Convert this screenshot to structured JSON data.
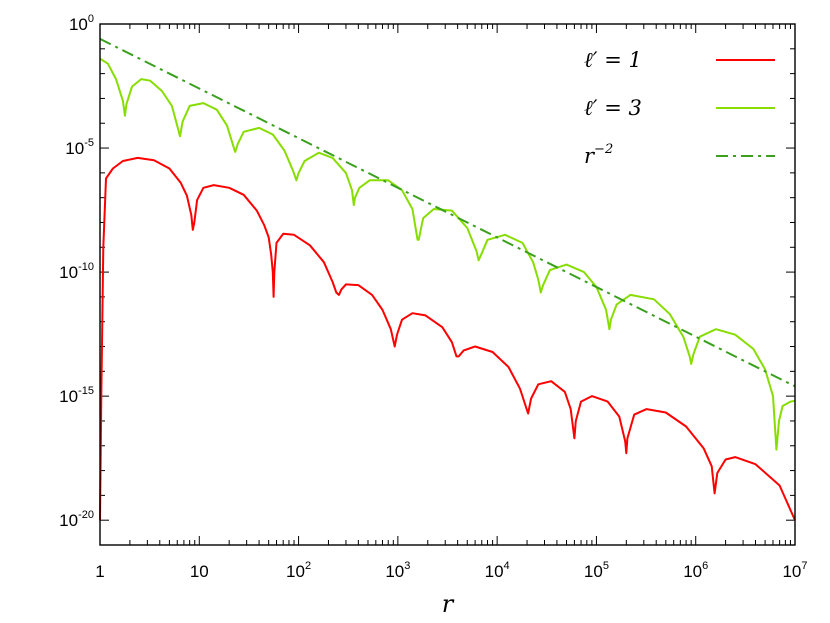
{
  "chart_data": {
    "type": "line",
    "title": "",
    "xlabel": "r",
    "ylabel": "",
    "x_scale": "log",
    "y_scale": "log",
    "xlim": [
      1,
      10000000
    ],
    "ylim": [
      1e-21,
      1
    ],
    "grid": false,
    "legend_position": "top-right",
    "x_ticks": [
      {
        "value": 1,
        "base": "1",
        "exp": ""
      },
      {
        "value": 10,
        "base": "10",
        "exp": ""
      },
      {
        "value": 100,
        "base": "10",
        "exp": "2"
      },
      {
        "value": 1000,
        "base": "10",
        "exp": "3"
      },
      {
        "value": 10000,
        "base": "10",
        "exp": "4"
      },
      {
        "value": 100000,
        "base": "10",
        "exp": "5"
      },
      {
        "value": 1000000,
        "base": "10",
        "exp": "6"
      },
      {
        "value": 10000000,
        "base": "10",
        "exp": "7"
      }
    ],
    "y_ticks": [
      {
        "value": 1,
        "base": "10",
        "exp": "0"
      },
      {
        "value": 1e-05,
        "base": "10",
        "exp": "-5"
      },
      {
        "value": 1e-10,
        "base": "10",
        "exp": "-10"
      },
      {
        "value": 1e-15,
        "base": "10",
        "exp": "-15"
      },
      {
        "value": 1e-20,
        "base": "10",
        "exp": "-20"
      }
    ],
    "series": [
      {
        "name": "ℓ′ = 1",
        "legend_base": "ℓ′ = 1",
        "legend_sup": "",
        "color": "#ff0000",
        "style": "solid",
        "points": [
          [
            1.0,
            1e-20
          ],
          [
            1.03,
            1e-15
          ],
          [
            1.08,
            1e-09
          ],
          [
            1.15,
            6e-07
          ],
          [
            1.35,
            1.5e-06
          ],
          [
            1.7,
            3e-06
          ],
          [
            2.4,
            4e-06
          ],
          [
            3.5,
            3.2e-06
          ],
          [
            5,
            1.5e-06
          ],
          [
            6.5,
            4e-07
          ],
          [
            7.5,
            1.2e-07
          ],
          [
            8.3,
            2e-08
          ],
          [
            8.6,
            5e-09
          ],
          [
            8.9,
            1e-08
          ],
          [
            9.5,
            8e-08
          ],
          [
            11,
            2.5e-07
          ],
          [
            14,
            3.2e-07
          ],
          [
            20,
            2.5e-07
          ],
          [
            28,
            1.3e-07
          ],
          [
            38,
            3e-08
          ],
          [
            45,
            8e-09
          ],
          [
            50,
            2.5e-09
          ],
          [
            53,
            5e-10
          ],
          [
            55,
            1e-10
          ],
          [
            56,
            1e-11
          ],
          [
            57,
            1e-10
          ],
          [
            60,
            1.5e-09
          ],
          [
            70,
            3.5e-09
          ],
          [
            90,
            3.2e-09
          ],
          [
            130,
            1.2e-09
          ],
          [
            180,
            2.5e-10
          ],
          [
            220,
            4e-11
          ],
          [
            240,
            1.5e-11
          ],
          [
            255,
            1.2e-11
          ],
          [
            270,
            2e-11
          ],
          [
            300,
            3.2e-11
          ],
          [
            400,
            3e-11
          ],
          [
            550,
            1.2e-11
          ],
          [
            700,
            3e-12
          ],
          [
            850,
            5e-13
          ],
          [
            930,
            1e-13
          ],
          [
            980,
            3e-13
          ],
          [
            1100,
            1.2e-12
          ],
          [
            1400,
            2.2e-12
          ],
          [
            1900,
            1.8e-12
          ],
          [
            2800,
            6e-13
          ],
          [
            3500,
            1.5e-13
          ],
          [
            3900,
            4e-14
          ],
          [
            4100,
            4e-14
          ],
          [
            4600,
            7e-14
          ],
          [
            6000,
            1e-13
          ],
          [
            9000,
            6e-14
          ],
          [
            13000,
            1.5e-14
          ],
          [
            17000,
            2e-15
          ],
          [
            20500,
            2e-16
          ],
          [
            22000,
            8e-16
          ],
          [
            26000,
            3e-15
          ],
          [
            35000,
            4e-15
          ],
          [
            48000,
            1.5e-15
          ],
          [
            55000,
            3e-16
          ],
          [
            58000,
            6e-17
          ],
          [
            60000,
            2e-17
          ],
          [
            62000,
            1e-16
          ],
          [
            70000,
            6e-16
          ],
          [
            90000,
            1e-15
          ],
          [
            130000,
            6e-16
          ],
          [
            170000,
            1.5e-16
          ],
          [
            195000,
            1.5e-17
          ],
          [
            200000,
            5e-18
          ],
          [
            205000,
            2e-17
          ],
          [
            240000,
            1.8e-16
          ],
          [
            320000,
            3e-16
          ],
          [
            500000,
            2.2e-16
          ],
          [
            800000,
            6e-17
          ],
          [
            1200000,
            8e-18
          ],
          [
            1450000,
            1.5e-18
          ],
          [
            1550000,
            1.2e-19
          ],
          [
            1650000,
            8e-19
          ],
          [
            2000000,
            2.8e-18
          ],
          [
            2500000,
            3.5e-18
          ],
          [
            4000000,
            1.8e-18
          ],
          [
            7000000,
            2.5e-19
          ],
          [
            10000000,
            1e-20
          ]
        ]
      },
      {
        "name": "ℓ′ = 3",
        "legend_base": "ℓ′ = 3",
        "legend_sup": "",
        "color": "#88dd00",
        "style": "solid",
        "points": [
          [
            1.0,
            0.04
          ],
          [
            1.2,
            0.025
          ],
          [
            1.45,
            0.006
          ],
          [
            1.7,
            0.0008
          ],
          [
            1.78,
            0.0002
          ],
          [
            1.85,
            0.0006
          ],
          [
            2.1,
            0.003
          ],
          [
            2.6,
            0.006
          ],
          [
            3.2,
            0.0052
          ],
          [
            4.2,
            0.002
          ],
          [
            5.3,
            0.0005
          ],
          [
            6.1,
            6e-05
          ],
          [
            6.4,
            3e-05
          ],
          [
            6.8,
            0.00012
          ],
          [
            8,
            0.0005
          ],
          [
            11,
            0.00065
          ],
          [
            15,
            0.00035
          ],
          [
            19,
            8e-05
          ],
          [
            22,
            1.2e-05
          ],
          [
            23,
            7e-06
          ],
          [
            24.5,
            1.5e-05
          ],
          [
            28,
            4.5e-05
          ],
          [
            40,
            6.5e-05
          ],
          [
            55,
            3.5e-05
          ],
          [
            72,
            8e-06
          ],
          [
            88,
            1.2e-06
          ],
          [
            95,
            5e-07
          ],
          [
            100,
            1e-06
          ],
          [
            115,
            3e-06
          ],
          [
            160,
            6.5e-06
          ],
          [
            220,
            4e-06
          ],
          [
            300,
            1e-06
          ],
          [
            345,
            2e-07
          ],
          [
            360,
            5e-08
          ],
          [
            370,
            1e-07
          ],
          [
            410,
            2.5e-07
          ],
          [
            520,
            5e-07
          ],
          [
            800,
            5e-07
          ],
          [
            1100,
            2e-07
          ],
          [
            1400,
            3.5e-08
          ],
          [
            1580,
            2e-09
          ],
          [
            1620,
            2e-09
          ],
          [
            1800,
            1.5e-08
          ],
          [
            2300,
            3.5e-08
          ],
          [
            3500,
            3e-08
          ],
          [
            5000,
            6e-09
          ],
          [
            6200,
            7e-10
          ],
          [
            6500,
            3e-10
          ],
          [
            6900,
            5e-10
          ],
          [
            8000,
            2e-09
          ],
          [
            12000,
            3.2e-09
          ],
          [
            18000,
            1.5e-09
          ],
          [
            23000,
            2.5e-10
          ],
          [
            26000,
            5e-11
          ],
          [
            27500,
            1.5e-11
          ],
          [
            29000,
            3e-11
          ],
          [
            34000,
            1.2e-10
          ],
          [
            50000,
            2e-10
          ],
          [
            75000,
            1e-10
          ],
          [
            100000,
            2.5e-11
          ],
          [
            125000,
            3e-12
          ],
          [
            135000,
            5e-13
          ],
          [
            140000,
            1.2e-12
          ],
          [
            160000,
            5e-12
          ],
          [
            220000,
            1.2e-11
          ],
          [
            380000,
            8e-12
          ],
          [
            550000,
            2e-12
          ],
          [
            750000,
            2.5e-13
          ],
          [
            870000,
            4e-14
          ],
          [
            900000,
            2e-14
          ],
          [
            950000,
            5e-14
          ],
          [
            1100000,
            2.5e-13
          ],
          [
            1600000,
            5e-13
          ],
          [
            2500000,
            3e-13
          ],
          [
            3800000,
            8e-14
          ],
          [
            5000000,
            1.2e-14
          ],
          [
            6000000,
            1e-15
          ],
          [
            6500000,
            7e-18
          ],
          [
            6900000,
            1e-16
          ],
          [
            7500000,
            4e-16
          ],
          [
            9000000,
            6e-16
          ],
          [
            10000000,
            6.5e-16
          ]
        ]
      },
      {
        "name": "r^-2",
        "legend_base": "r",
        "legend_sup": "−2",
        "color": "#3aa01e",
        "style": "dashdot",
        "points": [
          [
            1,
            0.25
          ],
          [
            10000000,
            2.5e-15
          ]
        ]
      }
    ]
  }
}
